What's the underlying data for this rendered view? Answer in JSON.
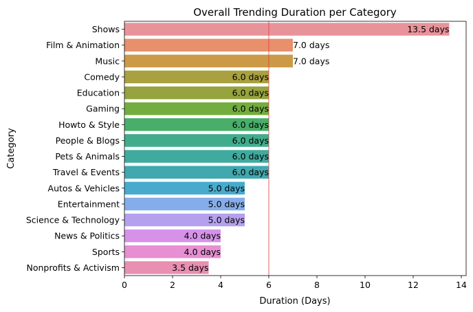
{
  "chart_data": {
    "type": "bar",
    "orientation": "horizontal",
    "title": "Overall Trending Duration per Category",
    "xlabel": "Duration (Days)",
    "ylabel": "Category",
    "xlim": [
      0,
      14.2
    ],
    "xticks": [
      0,
      2,
      4,
      6,
      8,
      10,
      12,
      14
    ],
    "grid": false,
    "reference_line": {
      "x": 6,
      "color": "#e03c3c"
    },
    "categories": [
      "Shows",
      "Film & Animation",
      "Music",
      "Comedy",
      "Education",
      "Gaming",
      "Howto & Style",
      "People & Blogs",
      "Pets & Animals",
      "Travel & Events",
      "Autos & Vehicles",
      "Entertainment",
      "Science & Technology",
      "News & Politics",
      "Sports",
      "Nonprofits & Activism"
    ],
    "values": [
      13.5,
      7.0,
      7.0,
      6.0,
      6.0,
      6.0,
      6.0,
      6.0,
      6.0,
      6.0,
      5.0,
      5.0,
      5.0,
      4.0,
      4.0,
      3.5
    ],
    "data_labels": [
      "13.5 days",
      "7.0 days",
      "7.0 days",
      "6.0 days",
      "6.0 days",
      "6.0 days",
      "6.0 days",
      "6.0 days",
      "6.0 days",
      "6.0 days",
      "5.0 days",
      "5.0 days",
      "5.0 days",
      "4.0 days",
      "4.0 days",
      "3.5 days"
    ],
    "colors": [
      "#e8939a",
      "#e88f6c",
      "#cc9a47",
      "#a9a03f",
      "#96a33e",
      "#73ad3f",
      "#48ae6a",
      "#41ac8c",
      "#40aa9e",
      "#40a8ae",
      "#47abce",
      "#85ade9",
      "#b4a0ec",
      "#d692e9",
      "#e68fd2",
      "#e88fb2"
    ]
  }
}
